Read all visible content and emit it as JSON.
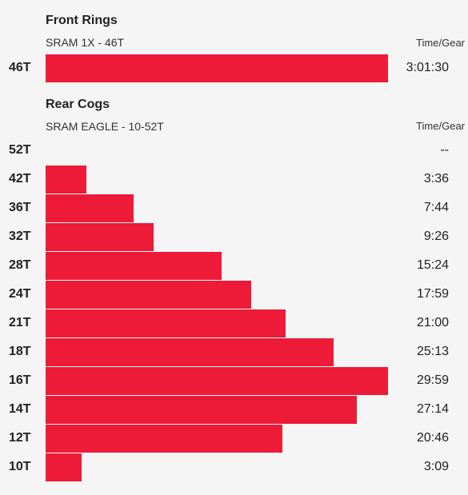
{
  "front": {
    "title": "Front Rings",
    "subtitle": "SRAM 1X - 46T",
    "column_header": "Time/Gear"
  },
  "rear": {
    "title": "Rear Cogs",
    "subtitle": "SRAM EAGLE - 10-52T",
    "column_header": "Time/Gear"
  },
  "colors": {
    "bar": "#ed1a38",
    "background": "#f5f5f5"
  },
  "chart_data": [
    {
      "type": "bar",
      "orientation": "horizontal",
      "title": "Front Rings",
      "subtitle": "SRAM 1X - 46T",
      "value_header": "Time/Gear",
      "categories": [
        "46T"
      ],
      "labels": [
        "3:01:30"
      ],
      "values": [
        10890
      ]
    },
    {
      "type": "bar",
      "orientation": "horizontal",
      "title": "Rear Cogs",
      "subtitle": "SRAM EAGLE - 10-52T",
      "value_header": "Time/Gear",
      "categories": [
        "52T",
        "42T",
        "36T",
        "32T",
        "28T",
        "24T",
        "21T",
        "18T",
        "16T",
        "14T",
        "12T",
        "10T"
      ],
      "labels": [
        "--",
        "3:36",
        "7:44",
        "9:26",
        "15:24",
        "17:59",
        "21:00",
        "25:13",
        "29:59",
        "27:14",
        "20:46",
        "3:09"
      ],
      "values": [
        0,
        216,
        464,
        566,
        924,
        1079,
        1260,
        1513,
        1799,
        1634,
        1246,
        189
      ]
    }
  ]
}
